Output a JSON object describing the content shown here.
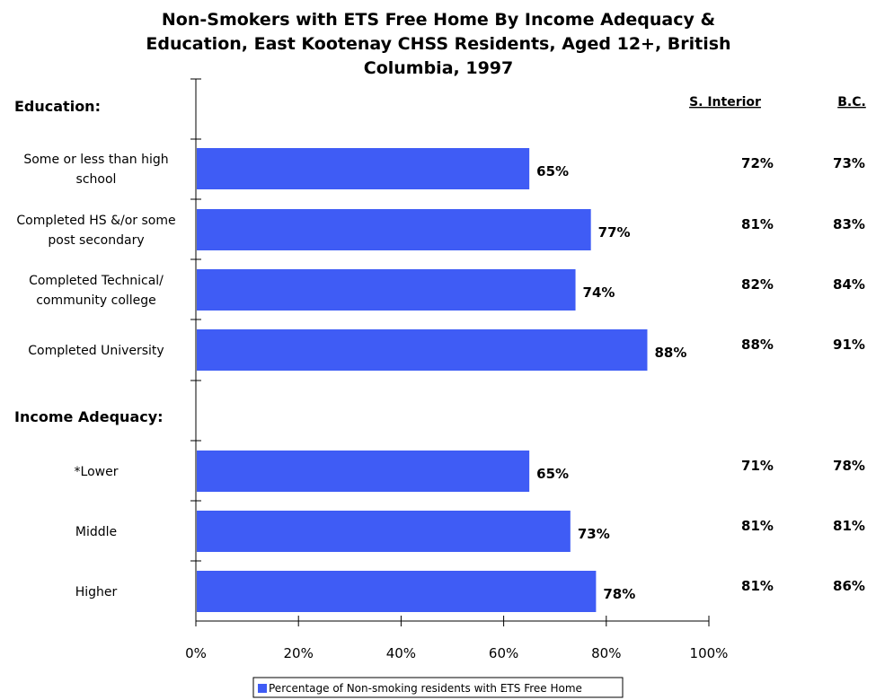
{
  "colors": {
    "bar": "#3f5cf5",
    "axis": "#000000"
  },
  "chart_data": {
    "type": "bar",
    "orientation": "horizontal",
    "title_lines": [
      "Non-Smokers with ETS Free Home By Income Adequacy &",
      "Education, East Kootenay CHSS Residents, Aged 12+, British",
      "Columbia, 1997"
    ],
    "xlim": [
      0,
      100
    ],
    "x_ticks": [
      "0%",
      "20%",
      "40%",
      "60%",
      "80%",
      "100%"
    ],
    "legend": {
      "label": "Percentage of Non-smoking residents with ETS Free Home",
      "placement": "bottom"
    },
    "columns": [
      "S. Interior",
      "B.C."
    ],
    "groups": [
      {
        "label": "Education:",
        "rows": [
          {
            "label_lines": [
              "Some or less than high",
              "school"
            ],
            "value": 65,
            "value_label": "65%",
            "s_interior": "72%",
            "bc": "73%"
          },
          {
            "label_lines": [
              "Completed HS &/or some",
              "post secondary"
            ],
            "value": 77,
            "value_label": "77%",
            "s_interior": "81%",
            "bc": "83%"
          },
          {
            "label_lines": [
              "Completed Technical/",
              "community college"
            ],
            "value": 74,
            "value_label": "74%",
            "s_interior": "82%",
            "bc": "84%"
          },
          {
            "label_lines": [
              "Completed University"
            ],
            "value": 88,
            "value_label": "88%",
            "s_interior": "88%",
            "bc": "91%"
          }
        ]
      },
      {
        "label": "Income Adequacy:",
        "rows": [
          {
            "label_lines": [
              "*Lower"
            ],
            "value": 65,
            "value_label": "65%",
            "s_interior": "71%",
            "bc": "78%"
          },
          {
            "label_lines": [
              "Middle"
            ],
            "value": 73,
            "value_label": "73%",
            "s_interior": "81%",
            "bc": "81%"
          },
          {
            "label_lines": [
              "Higher"
            ],
            "value": 78,
            "value_label": "78%",
            "s_interior": "81%",
            "bc": "86%"
          }
        ]
      }
    ]
  }
}
